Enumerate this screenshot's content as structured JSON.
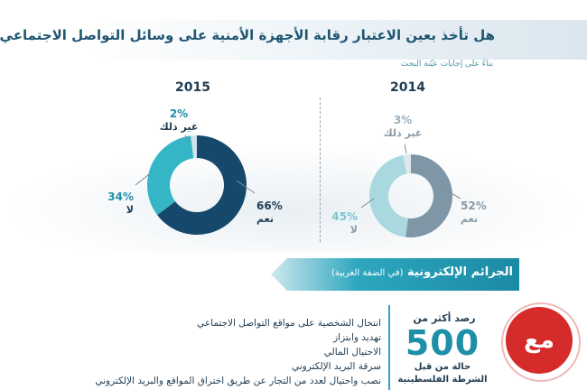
{
  "header": {
    "title": "هل تأخذ بعين الاعتبار رقابة الأجهزة الأمنية على وسائل التواصل الاجتماعي؟",
    "subtitle": "بناءً على إجابات عيّنة البحث"
  },
  "chart_data": [
    {
      "type": "pie",
      "title": "2015",
      "labels": [
        "نعم",
        "لا",
        "غير ذلك"
      ],
      "values": [
        66,
        34,
        2
      ],
      "display": [
        "66%",
        "34%",
        "2%"
      ],
      "colors": [
        "#16486b",
        "#35b6c6",
        "#cde4ea"
      ]
    },
    {
      "type": "pie",
      "title": "2014",
      "labels": [
        "نعم",
        "لا",
        "غير ذلك"
      ],
      "values": [
        52,
        45,
        3
      ],
      "display": [
        "52%",
        "45%",
        "3%"
      ],
      "colors": [
        "#7f96a7",
        "#a9d8df",
        "#dce8ed"
      ]
    }
  ],
  "crimes": {
    "title": "الجرائم الإلكترونية",
    "title_sub": "(في الضفة الغربية)",
    "items": [
      "انتحال الشخصية على مواقع التواصل الاجتماعي",
      "تهديد وابتزاز",
      "الاحتيال المالي",
      "سرقة البريد الإلكتروني",
      "نصب واحتيال لعدد من التجار عن طريق اختراق المواقع والبريد الإلكتروني"
    ],
    "stat_prefix": "رصد أكثر من",
    "stat_value": "500",
    "stat_suffix": "حالة من قبل الشرطة الفلسطينية"
  },
  "logo": {
    "text": "مع"
  }
}
